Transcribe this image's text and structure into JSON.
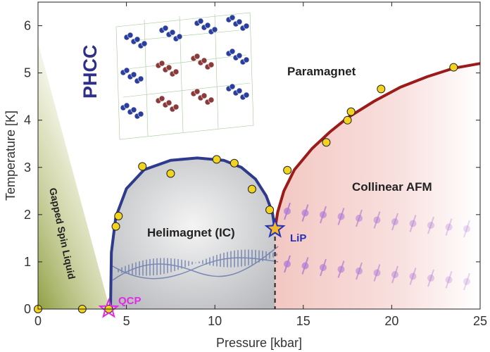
{
  "chart_data": {
    "type": "scatter",
    "xlabel": "Pressure [kbar]",
    "ylabel": "Temperature [K]",
    "xlim": [
      0,
      25
    ],
    "ylim": [
      0,
      6.5
    ],
    "xticks": [
      0,
      5,
      10,
      15,
      20,
      25
    ],
    "yticks": [
      0,
      1,
      2,
      3,
      4,
      5,
      6
    ],
    "x_tick_labels": [
      "0",
      "5",
      "10",
      "15",
      "20",
      "25"
    ],
    "y_tick_labels": [
      "0",
      "1",
      "2",
      "3",
      "4",
      "5",
      "6"
    ],
    "grid": false,
    "series": [
      {
        "marker": "circle",
        "color": "#f2d41f",
        "x": [
          0,
          2.5,
          4.0,
          4.4,
          4.55,
          5.9,
          7.5,
          10.1,
          11.1,
          12.1,
          13.1,
          14.1,
          16.3,
          17.5,
          17.7,
          19.4,
          23.5
        ],
        "y": [
          0,
          0,
          0,
          1.75,
          1.97,
          3.02,
          2.87,
          3.17,
          3.09,
          2.54,
          2.1,
          2.94,
          3.53,
          4.0,
          4.18,
          4.66,
          5.12
        ]
      }
    ],
    "boundaries": [
      {
        "name": "helimagnet-dome",
        "color": "#2e3a8c",
        "x": [
          4.1,
          4.15,
          4.4,
          5.0,
          6.0,
          7.5,
          9.0,
          10.5,
          11.5,
          12.3,
          12.9,
          13.25,
          13.4
        ],
        "y": [
          0,
          1.2,
          1.95,
          2.55,
          2.95,
          3.15,
          3.2,
          3.15,
          3.0,
          2.75,
          2.4,
          2.05,
          1.7
        ]
      },
      {
        "name": "afm-boundary",
        "color": "#9b1b1b",
        "x": [
          13.4,
          13.55,
          13.9,
          14.5,
          15.5,
          16.5,
          17.5,
          19.0,
          20.5,
          22.0,
          23.5,
          25.0
        ],
        "y": [
          1.7,
          2.05,
          2.5,
          2.95,
          3.4,
          3.75,
          4.05,
          4.4,
          4.7,
          4.92,
          5.1,
          5.2
        ]
      }
    ],
    "special_points": [
      {
        "label": "QCP",
        "x": 4.0,
        "y": 0,
        "color": "#e02be0"
      },
      {
        "label": "LiP",
        "x": 13.4,
        "y": 1.7,
        "color": "#2432b8"
      }
    ],
    "region_labels": [
      "Paramagnet",
      "Collinear AFM",
      "Helimagnet (IC)",
      "Gapped Spin Liquid"
    ],
    "inset_label": "PHCC"
  }
}
